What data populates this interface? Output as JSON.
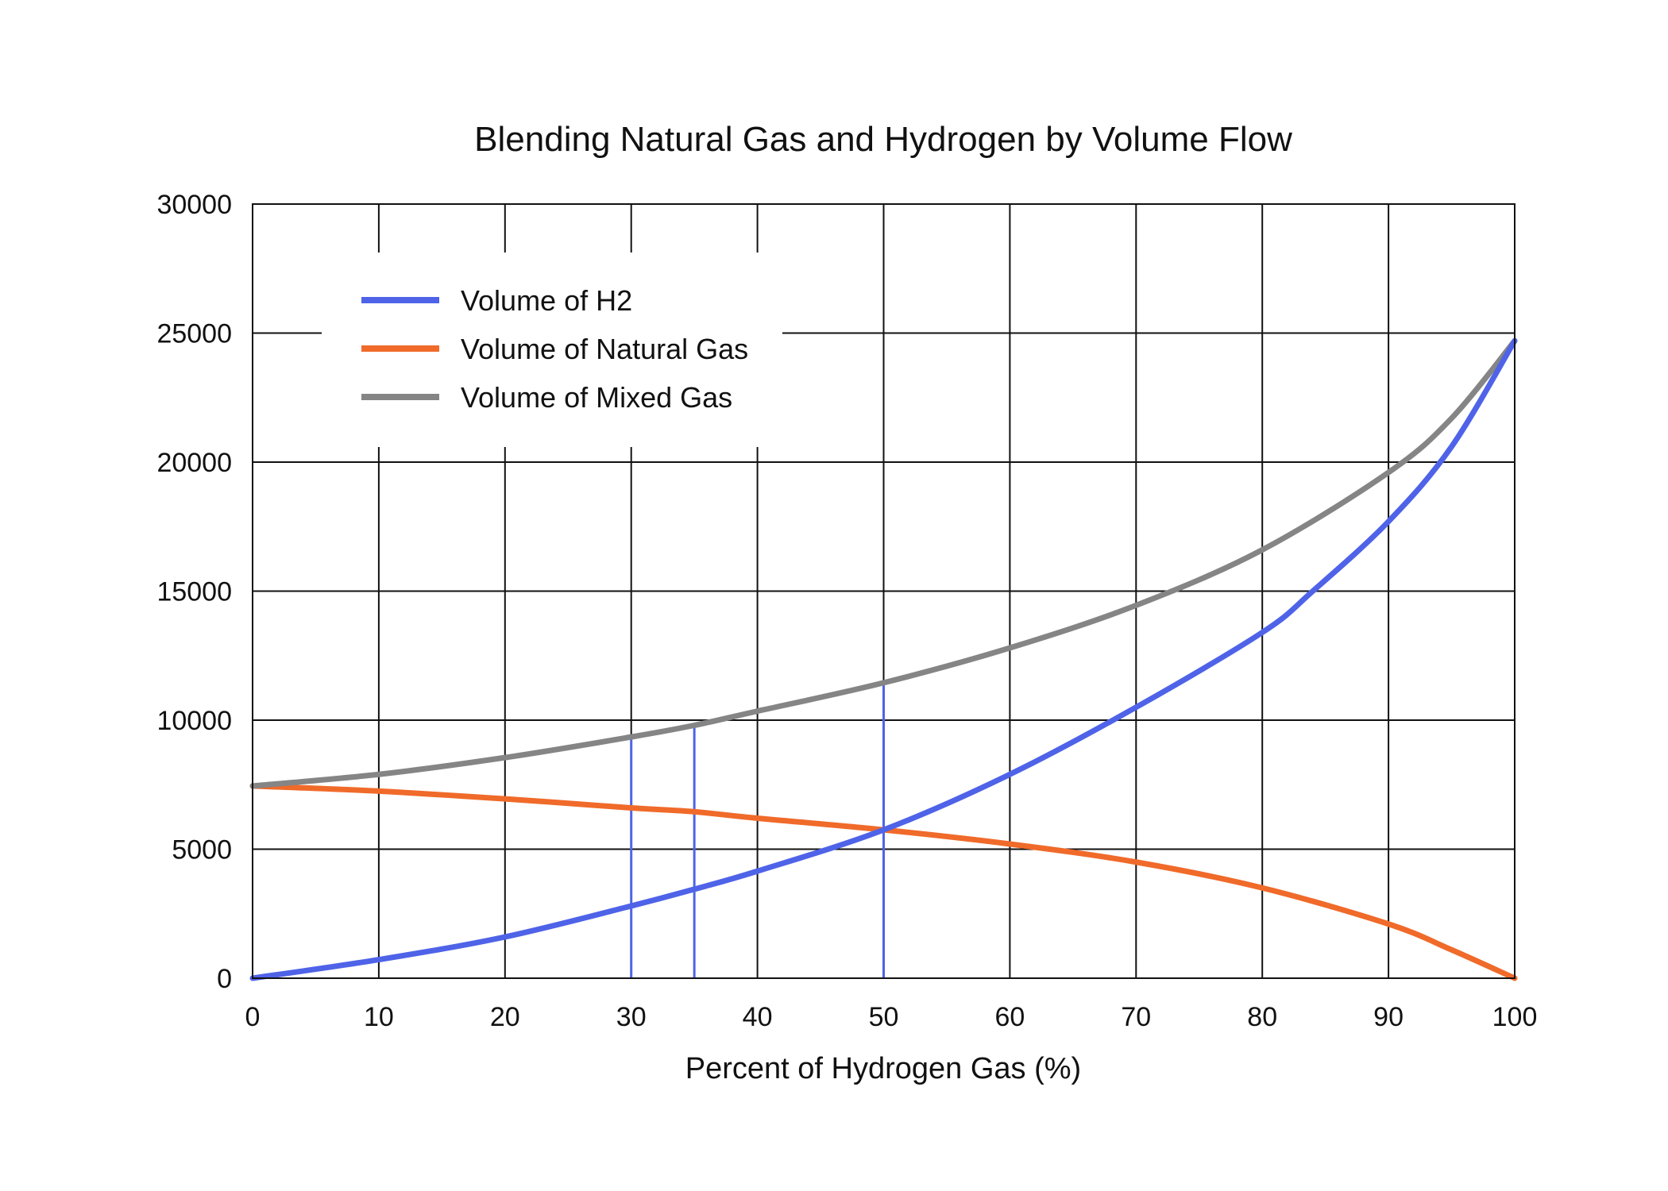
{
  "chart_data": {
    "type": "line",
    "title": "Blending Natural Gas and Hydrogen by Volume Flow",
    "xlabel": "Percent of Hydrogen Gas (%)",
    "ylabel": "",
    "xlim": [
      0,
      100
    ],
    "ylim": [
      0,
      30000
    ],
    "x_ticks": [
      "0",
      "10",
      "20",
      "30",
      "40",
      "50",
      "60",
      "70",
      "80",
      "90",
      "100"
    ],
    "y_ticks": [
      "0",
      "5000",
      "10000",
      "15000",
      "20000",
      "25000",
      "30000"
    ],
    "grid": true,
    "legend_position": "top-left",
    "series": [
      {
        "name": "Volume of H2",
        "color": "#4F63E8",
        "x": [
          0,
          10,
          20,
          30,
          35,
          40,
          50,
          60,
          70,
          80,
          84,
          90,
          95,
          100
        ],
        "y": [
          0,
          720,
          1600,
          2800,
          3450,
          4150,
          5750,
          7900,
          10500,
          13400,
          15000,
          17700,
          20600,
          24700
        ]
      },
      {
        "name": "Volume of Natural Gas",
        "color": "#F06A2A",
        "x": [
          0,
          10,
          20,
          30,
          35,
          40,
          50,
          60,
          70,
          80,
          90,
          95,
          100
        ],
        "y": [
          7450,
          7250,
          6950,
          6600,
          6450,
          6200,
          5750,
          5200,
          4500,
          3500,
          2100,
          1100,
          0
        ]
      },
      {
        "name": "Volume of Mixed Gas",
        "color": "#858585",
        "x": [
          0,
          10,
          20,
          30,
          35,
          40,
          50,
          60,
          70,
          80,
          90,
          95,
          100
        ],
        "y": [
          7450,
          7900,
          8550,
          9350,
          9800,
          10350,
          11450,
          12800,
          14450,
          16600,
          19600,
          21700,
          24700
        ]
      }
    ],
    "reference_lines": {
      "color": "#4F63E8",
      "lines": [
        {
          "x": 30,
          "y": 9350
        },
        {
          "x": 35,
          "y": 9800
        },
        {
          "x": 50,
          "y": 11450
        }
      ]
    }
  }
}
